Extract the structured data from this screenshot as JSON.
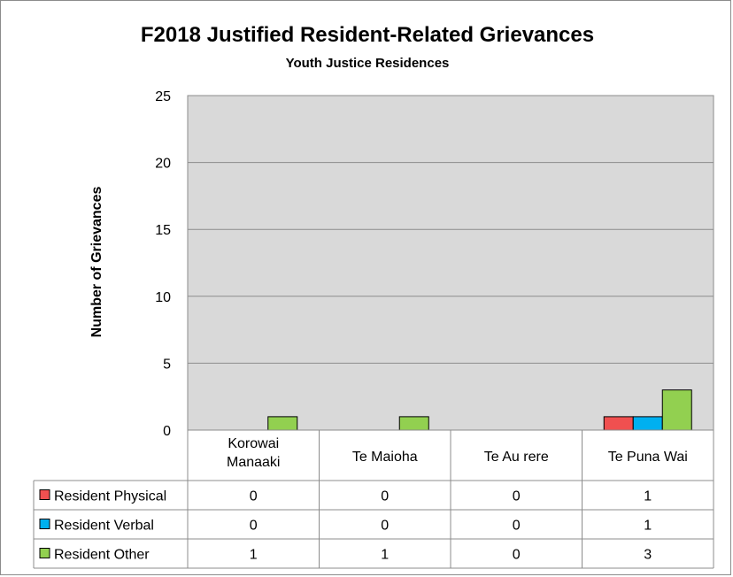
{
  "chart_data": {
    "type": "bar",
    "title": "F2018 Justified Resident-Related Grievances",
    "subtitle": "Youth Justice Residences",
    "ylabel": "Number of Grievances",
    "xlabel": "",
    "ylim": [
      0,
      25
    ],
    "yticks": [
      0,
      5,
      10,
      15,
      20,
      25
    ],
    "grid": true,
    "legend": "data-table-left",
    "categories": [
      [
        "Korowai",
        "Manaaki"
      ],
      [
        "Te Maioha"
      ],
      [
        "Te Au rere"
      ],
      [
        "Te Puna Wai"
      ]
    ],
    "series": [
      {
        "name": "Resident Physical",
        "color": "#f05050",
        "values": [
          0,
          0,
          0,
          1
        ]
      },
      {
        "name": "Resident Verbal",
        "color": "#00b0f0",
        "values": [
          0,
          0,
          0,
          1
        ]
      },
      {
        "name": "Resident Other",
        "color": "#92d050",
        "values": [
          1,
          1,
          0,
          3
        ]
      }
    ],
    "plot_background": "#d9d9d9"
  }
}
